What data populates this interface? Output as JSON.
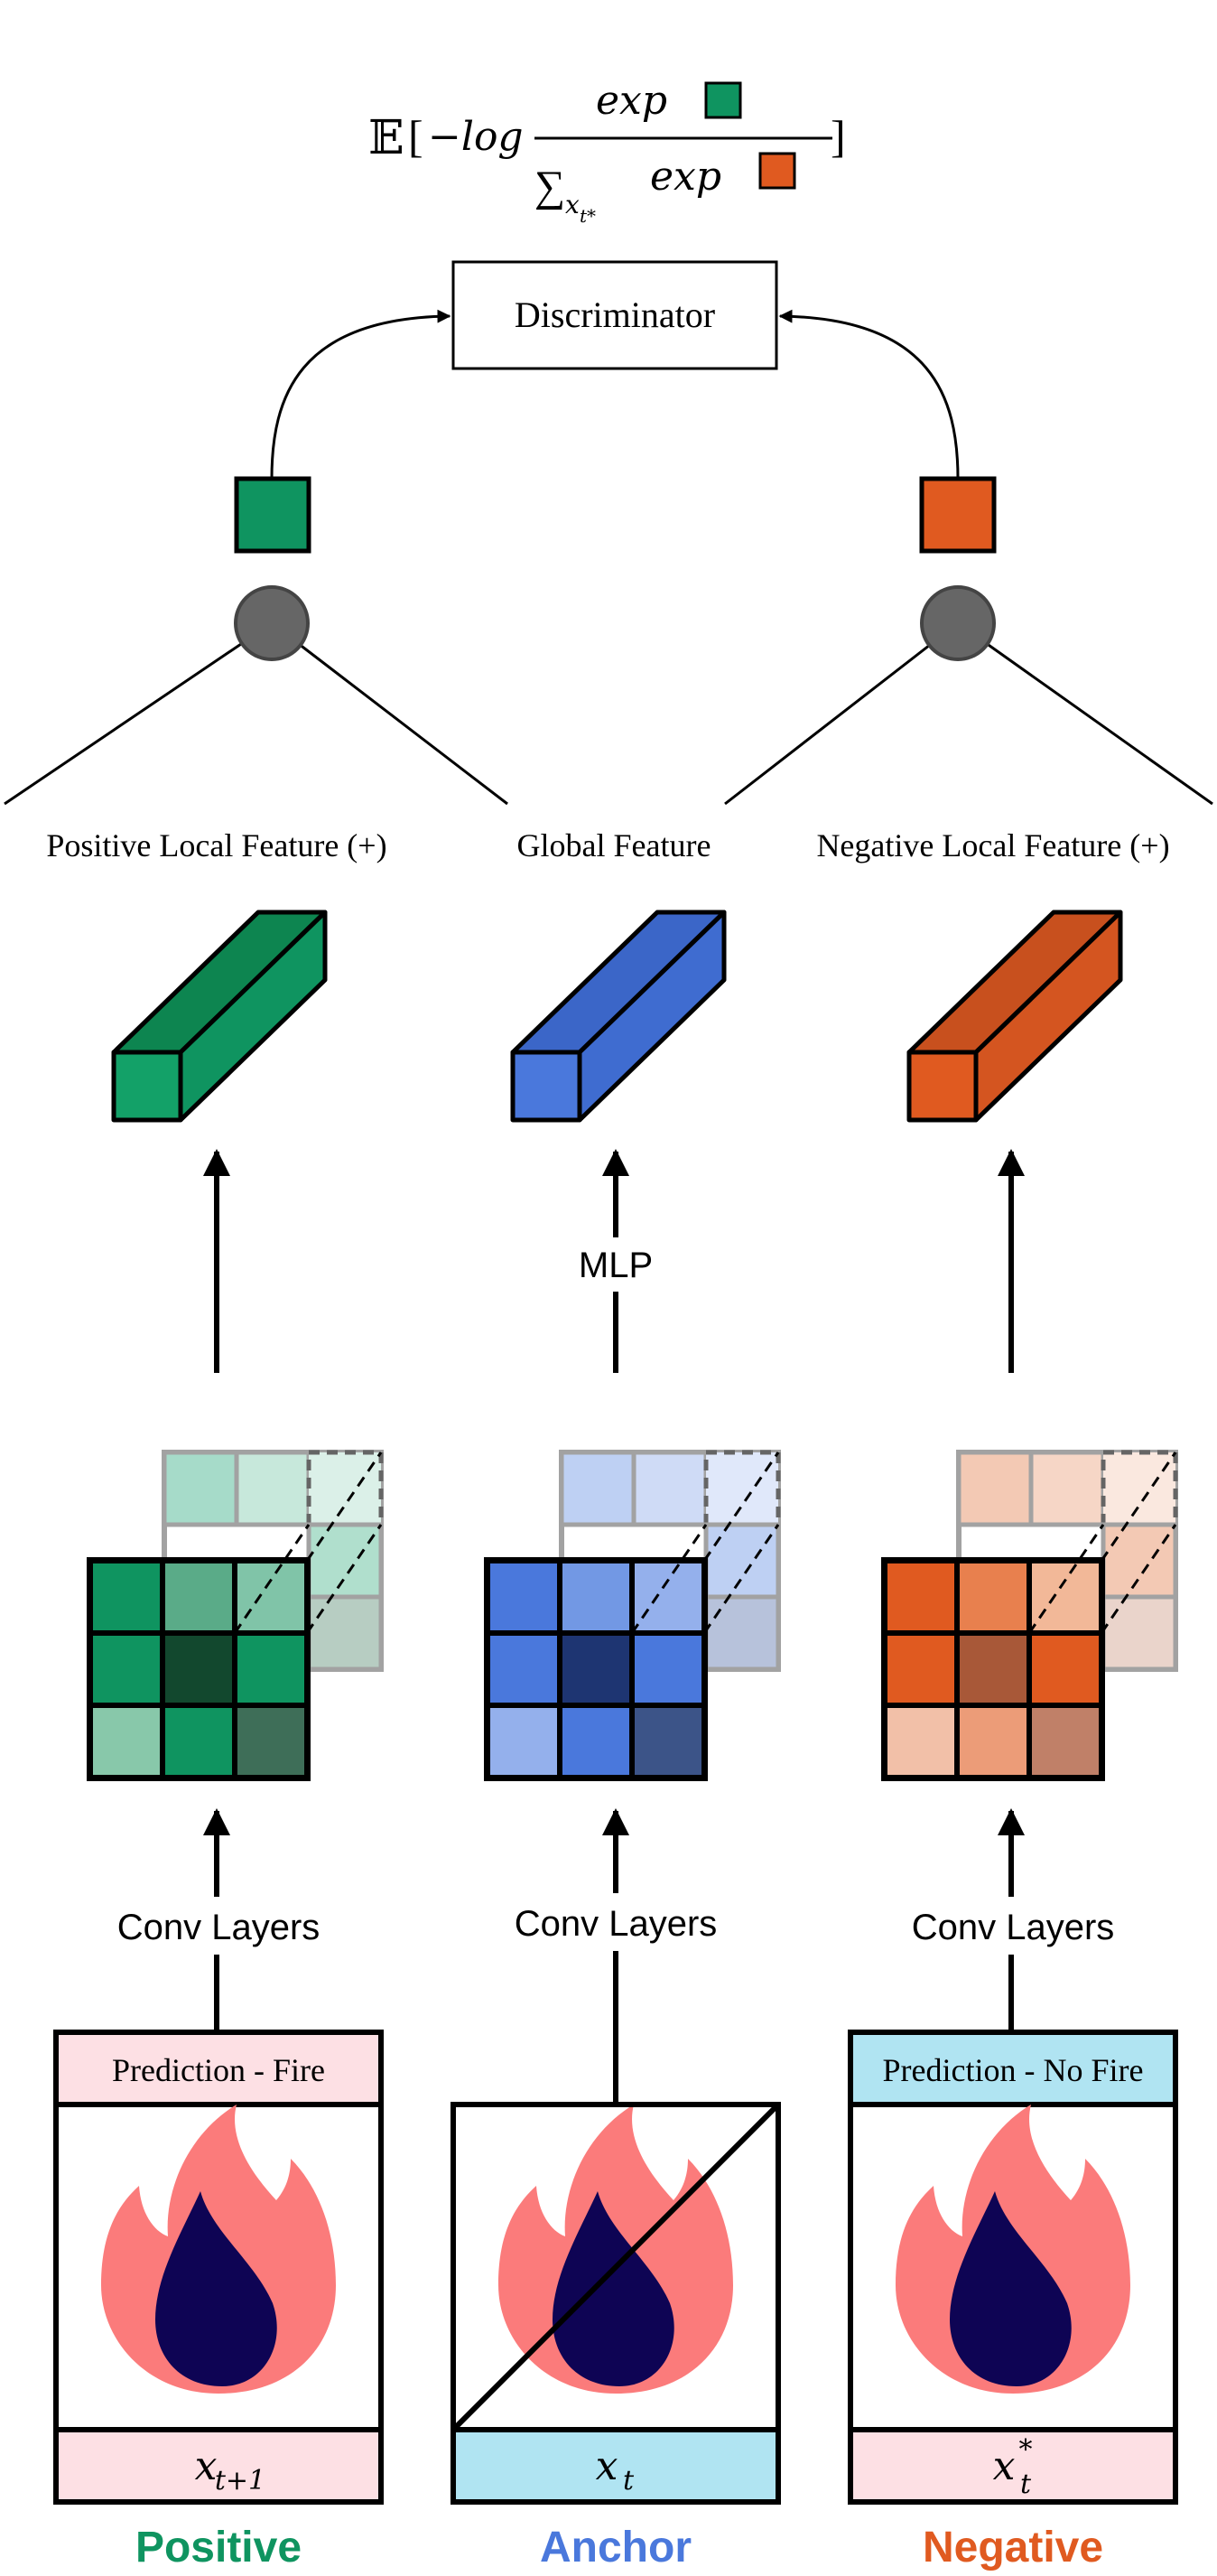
{
  "formula": {
    "expectation": "𝔼",
    "open_bracket": "[",
    "close_bracket": "]",
    "neg_log": "−log",
    "numerator": "exp",
    "sum_symbol": "∑",
    "sum_subscript": "x",
    "sum_subscript_sub": "t*",
    "denominator": "exp"
  },
  "discriminator": {
    "label": "Discriminator"
  },
  "feature_labels": {
    "positive": "Positive Local Feature (+)",
    "global": "Global Feature",
    "negative": "Negative Local Feature (+)"
  },
  "arrow_labels": {
    "mlp": "MLP",
    "conv_positive": "Conv Layers",
    "conv_anchor": "Conv Layers",
    "conv_negative": "Conv Layers"
  },
  "panels": {
    "positive": {
      "header": "Prediction - Fire",
      "var": "x",
      "var_sub": "t+1",
      "var_sup": "",
      "caption": "Positive"
    },
    "anchor": {
      "header": "",
      "var": "x",
      "var_sub": "t",
      "var_sup": "",
      "caption": "Anchor"
    },
    "negative": {
      "header": "Prediction - No Fire",
      "var": "x",
      "var_sub": "t",
      "var_sup": "*",
      "caption": "Negative"
    }
  },
  "colors": {
    "positive": "#0f9460",
    "anchor": "#4a78dc",
    "negative": "#e05a20",
    "flame_outer": "#fb7b7b",
    "flame_inner": "#0e0454",
    "pink_band": "#fde0e4",
    "blue_band": "#b0e4f2",
    "node_gray": "#666666"
  },
  "icons": {
    "flame": "flame-icon",
    "node": "pooling-node-icon",
    "feature_block": "feature-vector-icon",
    "feature_map": "feature-map-grid-icon"
  }
}
